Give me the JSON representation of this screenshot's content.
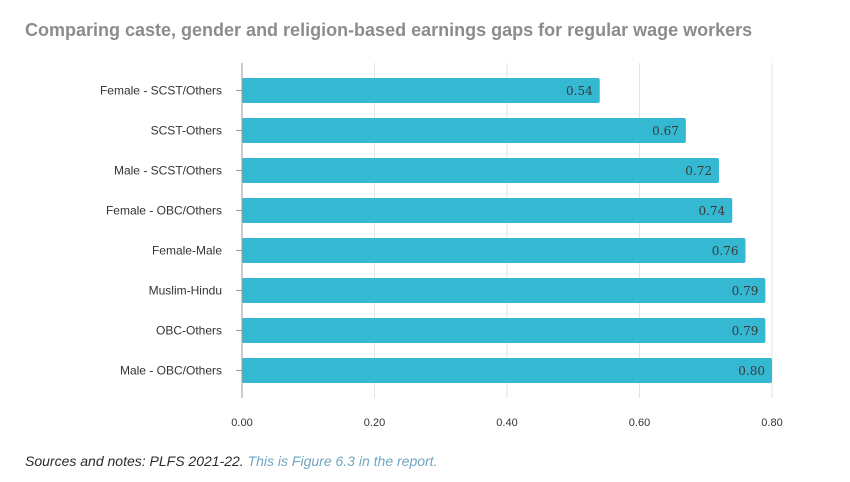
{
  "title": "Comparing caste, gender and religion-based earnings gaps for regular wage workers",
  "notes": {
    "prefix": "Sources and notes: PLFS 2021-22.",
    "link_text": "This is Figure 6.3 in the report."
  },
  "colors": {
    "bar": "#35b8d1",
    "grid": "#e3e3e3",
    "axis": "#9a9a9a"
  },
  "chart_data": {
    "type": "bar",
    "orientation": "horizontal",
    "title": "Comparing caste, gender and religion-based earnings gaps for regular wage workers",
    "categories": [
      "Female - SCST/Others",
      "SCST-Others",
      "Male - SCST/Others",
      "Female - OBC/Others",
      "Female-Male",
      "Muslim-Hindu",
      "OBC-Others",
      "Male - OBC/Others"
    ],
    "values": [
      0.54,
      0.67,
      0.72,
      0.74,
      0.76,
      0.79,
      0.79,
      0.8
    ],
    "value_labels": [
      "0.54",
      "0.67",
      "0.72",
      "0.74",
      "0.76",
      "0.79",
      "0.79",
      "0.80"
    ],
    "xlim": [
      0,
      0.8
    ],
    "xticks": [
      0,
      0.2,
      0.4,
      0.6,
      0.8
    ],
    "xtick_labels": [
      "0.00",
      "0.20",
      "0.40",
      "0.60",
      "0.80"
    ],
    "xlabel": "",
    "ylabel": "",
    "grid": true
  }
}
